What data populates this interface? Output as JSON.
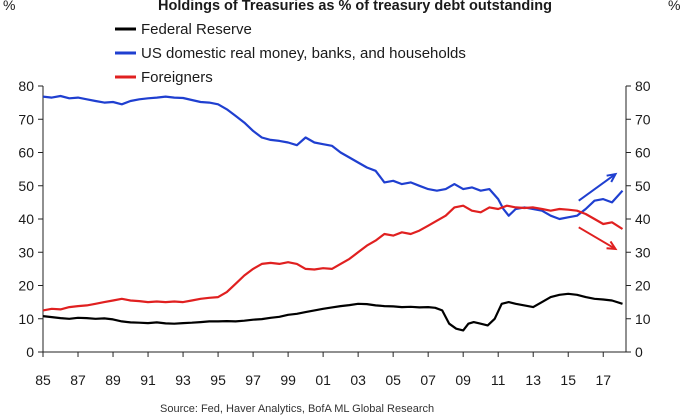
{
  "chart_data": {
    "type": "line",
    "title": "Holdings of Treasuries as % of treasury debt outstanding",
    "left_axis_unit": "%",
    "right_axis_unit": "%",
    "ylim": [
      0,
      80
    ],
    "yticks": [
      0,
      10,
      20,
      30,
      40,
      50,
      60,
      70,
      80
    ],
    "xlim": [
      1985,
      2018.3
    ],
    "xticks": [
      {
        "value": 1985,
        "label": "85"
      },
      {
        "value": 1987,
        "label": "87"
      },
      {
        "value": 1989,
        "label": "89"
      },
      {
        "value": 1991,
        "label": "91"
      },
      {
        "value": 1993,
        "label": "93"
      },
      {
        "value": 1995,
        "label": "95"
      },
      {
        "value": 1997,
        "label": "97"
      },
      {
        "value": 1999,
        "label": "99"
      },
      {
        "value": 2001,
        "label": "01"
      },
      {
        "value": 2003,
        "label": "03"
      },
      {
        "value": 2005,
        "label": "05"
      },
      {
        "value": 2007,
        "label": "07"
      },
      {
        "value": 2009,
        "label": "09"
      },
      {
        "value": 2011,
        "label": "11"
      },
      {
        "value": 2013,
        "label": "13"
      },
      {
        "value": 2015,
        "label": "15"
      },
      {
        "value": 2017,
        "label": "17"
      }
    ],
    "legend_position": "top",
    "series": [
      {
        "name": "Federal Reserve",
        "color": "#000000",
        "points": [
          [
            1985,
            10.8
          ],
          [
            1985.5,
            10.5
          ],
          [
            1986,
            10.2
          ],
          [
            1986.5,
            10.0
          ],
          [
            1987,
            10.3
          ],
          [
            1987.5,
            10.2
          ],
          [
            1988,
            10.0
          ],
          [
            1988.5,
            10.1
          ],
          [
            1989,
            9.8
          ],
          [
            1989.5,
            9.2
          ],
          [
            1990,
            8.9
          ],
          [
            1990.5,
            8.8
          ],
          [
            1991,
            8.7
          ],
          [
            1991.5,
            8.9
          ],
          [
            1992,
            8.6
          ],
          [
            1992.5,
            8.5
          ],
          [
            1993,
            8.7
          ],
          [
            1993.5,
            8.8
          ],
          [
            1994,
            9.0
          ],
          [
            1994.5,
            9.2
          ],
          [
            1995,
            9.2
          ],
          [
            1995.5,
            9.3
          ],
          [
            1996,
            9.2
          ],
          [
            1996.5,
            9.4
          ],
          [
            1997,
            9.7
          ],
          [
            1997.5,
            9.9
          ],
          [
            1998,
            10.3
          ],
          [
            1998.5,
            10.6
          ],
          [
            1999,
            11.2
          ],
          [
            1999.5,
            11.5
          ],
          [
            2000,
            12.0
          ],
          [
            2000.5,
            12.5
          ],
          [
            2001,
            13.0
          ],
          [
            2001.5,
            13.4
          ],
          [
            2002,
            13.8
          ],
          [
            2002.5,
            14.1
          ],
          [
            2003,
            14.5
          ],
          [
            2003.5,
            14.4
          ],
          [
            2004,
            14.0
          ],
          [
            2004.5,
            13.8
          ],
          [
            2005,
            13.7
          ],
          [
            2005.5,
            13.5
          ],
          [
            2006,
            13.6
          ],
          [
            2006.5,
            13.4
          ],
          [
            2007,
            13.5
          ],
          [
            2007.4,
            13.3
          ],
          [
            2007.8,
            12.5
          ],
          [
            2008.2,
            8.5
          ],
          [
            2008.6,
            7.0
          ],
          [
            2009,
            6.5
          ],
          [
            2009.3,
            8.5
          ],
          [
            2009.6,
            9.0
          ],
          [
            2010,
            8.5
          ],
          [
            2010.4,
            8.0
          ],
          [
            2010.8,
            10.0
          ],
          [
            2011.2,
            14.5
          ],
          [
            2011.6,
            15.0
          ],
          [
            2012,
            14.5
          ],
          [
            2012.5,
            14.0
          ],
          [
            2013,
            13.5
          ],
          [
            2013.5,
            15.0
          ],
          [
            2014,
            16.5
          ],
          [
            2014.5,
            17.2
          ],
          [
            2015,
            17.5
          ],
          [
            2015.5,
            17.2
          ],
          [
            2016,
            16.5
          ],
          [
            2016.5,
            16.0
          ],
          [
            2017,
            15.8
          ],
          [
            2017.5,
            15.5
          ],
          [
            2018.1,
            14.5
          ]
        ]
      },
      {
        "name": "US domestic real money, banks, and households",
        "color": "#1f3fd0",
        "points": [
          [
            1985,
            76.8
          ],
          [
            1985.5,
            76.5
          ],
          [
            1986,
            77.0
          ],
          [
            1986.5,
            76.3
          ],
          [
            1987,
            76.5
          ],
          [
            1987.5,
            76.0
          ],
          [
            1988,
            75.5
          ],
          [
            1988.5,
            75.0
          ],
          [
            1989,
            75.2
          ],
          [
            1989.5,
            74.5
          ],
          [
            1990,
            75.5
          ],
          [
            1990.5,
            76.0
          ],
          [
            1991,
            76.3
          ],
          [
            1991.5,
            76.5
          ],
          [
            1992,
            76.8
          ],
          [
            1992.5,
            76.5
          ],
          [
            1993,
            76.4
          ],
          [
            1993.5,
            75.8
          ],
          [
            1994,
            75.2
          ],
          [
            1994.5,
            75.0
          ],
          [
            1995,
            74.5
          ],
          [
            1995.5,
            73.0
          ],
          [
            1996,
            71.0
          ],
          [
            1996.5,
            69.0
          ],
          [
            1997,
            66.5
          ],
          [
            1997.5,
            64.5
          ],
          [
            1998,
            63.8
          ],
          [
            1998.5,
            63.5
          ],
          [
            1999,
            63.0
          ],
          [
            1999.5,
            62.2
          ],
          [
            2000,
            64.5
          ],
          [
            2000.5,
            63.0
          ],
          [
            2001,
            62.5
          ],
          [
            2001.5,
            62.0
          ],
          [
            2002,
            60.0
          ],
          [
            2002.5,
            58.5
          ],
          [
            2003,
            57.0
          ],
          [
            2003.5,
            55.5
          ],
          [
            2004,
            54.5
          ],
          [
            2004.5,
            51.0
          ],
          [
            2005,
            51.5
          ],
          [
            2005.5,
            50.5
          ],
          [
            2006,
            51.0
          ],
          [
            2006.5,
            50.0
          ],
          [
            2007,
            49.0
          ],
          [
            2007.5,
            48.5
          ],
          [
            2008,
            49.0
          ],
          [
            2008.5,
            50.5
          ],
          [
            2009,
            49.0
          ],
          [
            2009.5,
            49.5
          ],
          [
            2010,
            48.5
          ],
          [
            2010.5,
            49.0
          ],
          [
            2011,
            46.0
          ],
          [
            2011.3,
            43.0
          ],
          [
            2011.6,
            41.0
          ],
          [
            2012,
            43.0
          ],
          [
            2012.5,
            43.5
          ],
          [
            2013,
            43.0
          ],
          [
            2013.5,
            42.5
          ],
          [
            2014,
            41.0
          ],
          [
            2014.5,
            40.0
          ],
          [
            2015,
            40.5
          ],
          [
            2015.5,
            41.0
          ],
          [
            2016,
            43.0
          ],
          [
            2016.5,
            45.5
          ],
          [
            2017,
            46.0
          ],
          [
            2017.5,
            45.0
          ],
          [
            2018.1,
            48.5
          ]
        ]
      },
      {
        "name": "Foreigners",
        "color": "#e02020",
        "points": [
          [
            1985,
            12.5
          ],
          [
            1985.5,
            13.0
          ],
          [
            1986,
            12.8
          ],
          [
            1986.5,
            13.5
          ],
          [
            1987,
            13.8
          ],
          [
            1987.5,
            14.0
          ],
          [
            1988,
            14.5
          ],
          [
            1988.5,
            15.0
          ],
          [
            1989,
            15.5
          ],
          [
            1989.5,
            16.0
          ],
          [
            1990,
            15.5
          ],
          [
            1990.5,
            15.3
          ],
          [
            1991,
            15.0
          ],
          [
            1991.5,
            15.2
          ],
          [
            1992,
            15.0
          ],
          [
            1992.5,
            15.2
          ],
          [
            1993,
            15.0
          ],
          [
            1993.5,
            15.5
          ],
          [
            1994,
            16.0
          ],
          [
            1994.5,
            16.3
          ],
          [
            1995,
            16.5
          ],
          [
            1995.5,
            18.0
          ],
          [
            1996,
            20.5
          ],
          [
            1996.5,
            23.0
          ],
          [
            1997,
            25.0
          ],
          [
            1997.5,
            26.5
          ],
          [
            1998,
            26.8
          ],
          [
            1998.5,
            26.5
          ],
          [
            1999,
            27.0
          ],
          [
            1999.5,
            26.5
          ],
          [
            2000,
            25.0
          ],
          [
            2000.5,
            24.8
          ],
          [
            2001,
            25.2
          ],
          [
            2001.5,
            25.0
          ],
          [
            2002,
            26.5
          ],
          [
            2002.5,
            28.0
          ],
          [
            2003,
            30.0
          ],
          [
            2003.5,
            32.0
          ],
          [
            2004,
            33.5
          ],
          [
            2004.5,
            35.5
          ],
          [
            2005,
            35.0
          ],
          [
            2005.5,
            36.0
          ],
          [
            2006,
            35.5
          ],
          [
            2006.5,
            36.5
          ],
          [
            2007,
            38.0
          ],
          [
            2007.5,
            39.5
          ],
          [
            2008,
            41.0
          ],
          [
            2008.5,
            43.5
          ],
          [
            2009,
            44.0
          ],
          [
            2009.5,
            42.5
          ],
          [
            2010,
            42.0
          ],
          [
            2010.5,
            43.5
          ],
          [
            2011,
            43.0
          ],
          [
            2011.5,
            44.0
          ],
          [
            2012,
            43.5
          ],
          [
            2012.5,
            43.3
          ],
          [
            2013,
            43.5
          ],
          [
            2013.5,
            43.0
          ],
          [
            2014,
            42.5
          ],
          [
            2014.5,
            43.0
          ],
          [
            2015,
            42.8
          ],
          [
            2015.5,
            42.5
          ],
          [
            2016,
            41.5
          ],
          [
            2016.5,
            40.0
          ],
          [
            2017,
            38.5
          ],
          [
            2017.5,
            39.0
          ],
          [
            2018.1,
            37.0
          ]
        ]
      }
    ],
    "annotations": [
      {
        "type": "arrow",
        "color": "#1f3fd0",
        "from": [
          2015.6,
          45.5
        ],
        "to": [
          2017.7,
          53.5
        ]
      },
      {
        "type": "arrow",
        "color": "#e02020",
        "from": [
          2015.6,
          37.5
        ],
        "to": [
          2017.7,
          31.0
        ]
      }
    ],
    "source_note": "Source: Fed, Haver Analytics, BofA ML Global Research"
  }
}
